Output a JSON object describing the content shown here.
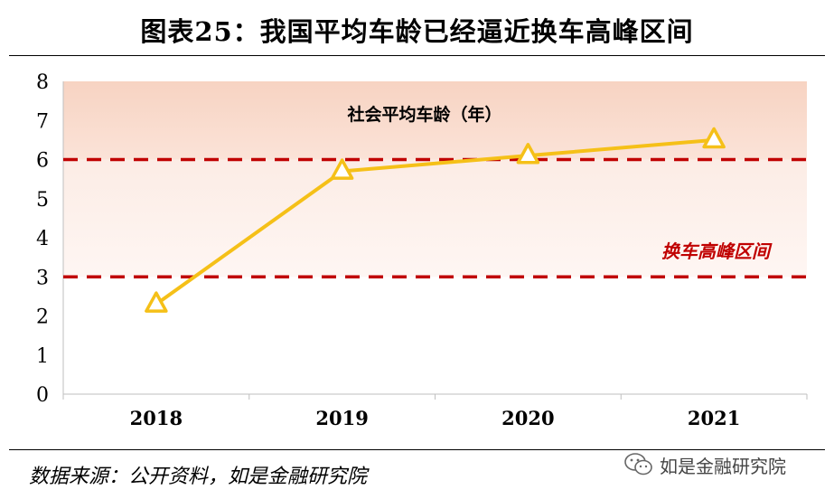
{
  "title": "图表25：我国平均车龄已经逼近换车高峰区间",
  "source": "数据来源：公开资料，如是金融研究院",
  "watermark": "如是金融研究院",
  "chart_data": {
    "type": "line",
    "categories": [
      "2018",
      "2019",
      "2020",
      "2021"
    ],
    "series": [
      {
        "name": "社会平均车龄（年）",
        "values": [
          2.3,
          5.7,
          6.1,
          6.5
        ],
        "color": "#F5C018",
        "marker": "triangle"
      }
    ],
    "ylim": [
      0,
      8
    ],
    "yticks": [
      0,
      1,
      2,
      3,
      4,
      5,
      6,
      7,
      8
    ],
    "grid": false,
    "reference_lines": [
      {
        "value": 6,
        "color": "#C00000",
        "style": "dashed"
      },
      {
        "value": 3,
        "color": "#C00000",
        "style": "dashed"
      }
    ],
    "band_label": "换车高峰区间",
    "band_label_color": "#C00000",
    "band_range": [
      3,
      6
    ],
    "upper_band_range": [
      6,
      8
    ],
    "series_label": "社会平均车龄（年）"
  }
}
